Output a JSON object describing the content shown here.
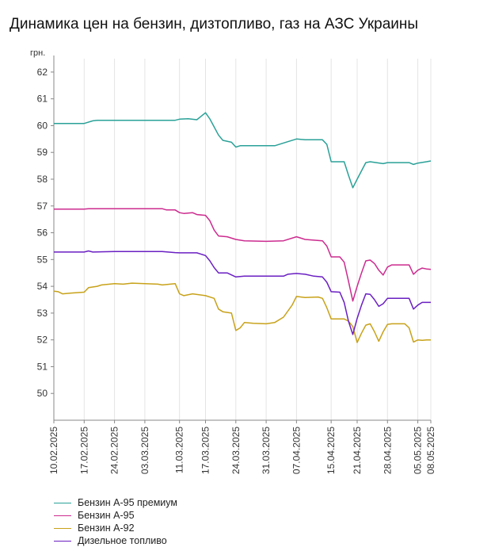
{
  "page": {
    "title": "Динамика цен на бензин, дизтопливо, газ на АЗС Украины"
  },
  "chart_data": {
    "type": "line",
    "title": "Динамика цен на бензин, дизтопливо, газ на АЗС Украины",
    "ylabel": "грн.",
    "xlabel": "",
    "ylim": [
      49,
      62.5
    ],
    "yticks": [
      50,
      51,
      52,
      53,
      54,
      55,
      56,
      57,
      58,
      59,
      60,
      61,
      62
    ],
    "x_start": "10.02.2025",
    "x_end": "08.05.2025",
    "xtick_labels": [
      "10.02.2025",
      "17.02.2025",
      "24.02.2025",
      "03.03.2025",
      "11.03.2025",
      "17.03.2025",
      "24.03.2025",
      "31.03.2025",
      "07.04.2025",
      "15.04.2025",
      "21.04.2025",
      "28.04.2025",
      "05.05.2025",
      "08.05.2025"
    ],
    "grid": "vertical",
    "legend_position": "bottom-left",
    "series": [
      {
        "name": "Бензин А-95 премиум",
        "color": "#2aa198",
        "points": [
          [
            "10.02.2025",
            60.08
          ],
          [
            "17.02.2025",
            60.08
          ],
          [
            "19.02.2025",
            60.18
          ],
          [
            "20.02.2025",
            60.2
          ],
          [
            "24.02.2025",
            60.2
          ],
          [
            "03.03.2025",
            60.2
          ],
          [
            "10.03.2025",
            60.2
          ],
          [
            "11.03.2025",
            60.24
          ],
          [
            "13.03.2025",
            60.26
          ],
          [
            "15.03.2025",
            60.22
          ],
          [
            "17.03.2025",
            60.48
          ],
          [
            "18.03.2025",
            60.25
          ],
          [
            "20.03.2025",
            59.65
          ],
          [
            "21.03.2025",
            59.45
          ],
          [
            "23.03.2025",
            59.38
          ],
          [
            "24.03.2025",
            59.2
          ],
          [
            "25.03.2025",
            59.25
          ],
          [
            "31.03.2025",
            59.25
          ],
          [
            "02.04.2025",
            59.25
          ],
          [
            "05.04.2025",
            59.4
          ],
          [
            "07.04.2025",
            59.5
          ],
          [
            "09.04.2025",
            59.47
          ],
          [
            "13.04.2025",
            59.47
          ],
          [
            "14.04.2025",
            59.3
          ],
          [
            "15.04.2025",
            58.65
          ],
          [
            "18.04.2025",
            58.65
          ],
          [
            "19.04.2025",
            58.15
          ],
          [
            "20.04.2025",
            57.68
          ],
          [
            "21.04.2025",
            58.0
          ],
          [
            "23.04.2025",
            58.62
          ],
          [
            "24.04.2025",
            58.65
          ],
          [
            "27.04.2025",
            58.58
          ],
          [
            "28.04.2025",
            58.62
          ],
          [
            "03.05.2025",
            58.62
          ],
          [
            "04.05.2025",
            58.55
          ],
          [
            "05.05.2025",
            58.6
          ],
          [
            "07.05.2025",
            58.65
          ],
          [
            "08.05.2025",
            58.68
          ]
        ]
      },
      {
        "name": "Бензин А-95",
        "color": "#cc2b8f",
        "points": [
          [
            "10.02.2025",
            56.88
          ],
          [
            "17.02.2025",
            56.88
          ],
          [
            "18.02.2025",
            56.9
          ],
          [
            "24.02.2025",
            56.9
          ],
          [
            "03.03.2025",
            56.9
          ],
          [
            "07.03.2025",
            56.9
          ],
          [
            "08.03.2025",
            56.85
          ],
          [
            "10.03.2025",
            56.85
          ],
          [
            "11.03.2025",
            56.75
          ],
          [
            "12.03.2025",
            56.72
          ],
          [
            "14.03.2025",
            56.75
          ],
          [
            "15.03.2025",
            56.68
          ],
          [
            "17.03.2025",
            56.65
          ],
          [
            "18.03.2025",
            56.45
          ],
          [
            "19.03.2025",
            56.1
          ],
          [
            "20.03.2025",
            55.88
          ],
          [
            "22.03.2025",
            55.85
          ],
          [
            "24.03.2025",
            55.75
          ],
          [
            "26.03.2025",
            55.7
          ],
          [
            "31.03.2025",
            55.68
          ],
          [
            "04.04.2025",
            55.7
          ],
          [
            "07.04.2025",
            55.85
          ],
          [
            "09.04.2025",
            55.75
          ],
          [
            "13.04.2025",
            55.7
          ],
          [
            "14.04.2025",
            55.5
          ],
          [
            "15.04.2025",
            55.1
          ],
          [
            "17.04.2025",
            55.1
          ],
          [
            "18.04.2025",
            54.9
          ],
          [
            "19.04.2025",
            54.2
          ],
          [
            "20.04.2025",
            53.45
          ],
          [
            "21.04.2025",
            54.0
          ],
          [
            "22.04.2025",
            54.5
          ],
          [
            "23.04.2025",
            54.95
          ],
          [
            "24.04.2025",
            54.98
          ],
          [
            "25.04.2025",
            54.85
          ],
          [
            "26.04.2025",
            54.6
          ],
          [
            "27.04.2025",
            54.42
          ],
          [
            "28.04.2025",
            54.72
          ],
          [
            "29.04.2025",
            54.8
          ],
          [
            "03.05.2025",
            54.8
          ],
          [
            "04.05.2025",
            54.45
          ],
          [
            "05.05.2025",
            54.6
          ],
          [
            "06.05.2025",
            54.68
          ],
          [
            "07.05.2025",
            54.65
          ],
          [
            "08.05.2025",
            54.63
          ]
        ]
      },
      {
        "name": "Бензин А-92",
        "color": "#c8a21a",
        "points": [
          [
            "10.02.2025",
            53.82
          ],
          [
            "11.02.2025",
            53.8
          ],
          [
            "12.02.2025",
            53.72
          ],
          [
            "14.02.2025",
            53.75
          ],
          [
            "17.02.2025",
            53.78
          ],
          [
            "18.02.2025",
            53.95
          ],
          [
            "20.02.2025",
            54.0
          ],
          [
            "21.02.2025",
            54.05
          ],
          [
            "24.02.2025",
            54.1
          ],
          [
            "26.02.2025",
            54.08
          ],
          [
            "28.02.2025",
            54.12
          ],
          [
            "03.03.2025",
            54.1
          ],
          [
            "06.03.2025",
            54.08
          ],
          [
            "07.03.2025",
            54.05
          ],
          [
            "10.03.2025",
            54.1
          ],
          [
            "11.03.2025",
            53.72
          ],
          [
            "12.03.2025",
            53.65
          ],
          [
            "14.03.2025",
            53.72
          ],
          [
            "17.03.2025",
            53.65
          ],
          [
            "19.03.2025",
            53.55
          ],
          [
            "20.03.2025",
            53.15
          ],
          [
            "21.03.2025",
            53.05
          ],
          [
            "23.03.2025",
            53.0
          ],
          [
            "24.03.2025",
            52.35
          ],
          [
            "25.03.2025",
            52.45
          ],
          [
            "26.03.2025",
            52.65
          ],
          [
            "28.03.2025",
            52.62
          ],
          [
            "31.03.2025",
            52.6
          ],
          [
            "02.04.2025",
            52.65
          ],
          [
            "04.04.2025",
            52.85
          ],
          [
            "06.04.2025",
            53.3
          ],
          [
            "07.04.2025",
            53.62
          ],
          [
            "09.04.2025",
            53.58
          ],
          [
            "12.04.2025",
            53.6
          ],
          [
            "13.04.2025",
            53.55
          ],
          [
            "14.04.2025",
            53.2
          ],
          [
            "15.04.2025",
            52.78
          ],
          [
            "18.04.2025",
            52.78
          ],
          [
            "19.04.2025",
            52.7
          ],
          [
            "20.04.2025",
            52.5
          ],
          [
            "21.04.2025",
            51.9
          ],
          [
            "22.04.2025",
            52.25
          ],
          [
            "23.04.2025",
            52.55
          ],
          [
            "24.04.2025",
            52.6
          ],
          [
            "25.04.2025",
            52.3
          ],
          [
            "26.04.2025",
            51.95
          ],
          [
            "27.04.2025",
            52.3
          ],
          [
            "28.04.2025",
            52.58
          ],
          [
            "29.04.2025",
            52.6
          ],
          [
            "02.05.2025",
            52.6
          ],
          [
            "03.05.2025",
            52.45
          ],
          [
            "04.05.2025",
            51.92
          ],
          [
            "05.05.2025",
            52.0
          ],
          [
            "06.05.2025",
            51.98
          ],
          [
            "07.05.2025",
            52.0
          ],
          [
            "08.05.2025",
            52.0
          ]
        ]
      },
      {
        "name": "Дизельное топливо",
        "color": "#6a1fc2",
        "points": [
          [
            "10.02.2025",
            55.28
          ],
          [
            "17.02.2025",
            55.28
          ],
          [
            "18.02.2025",
            55.32
          ],
          [
            "19.02.2025",
            55.28
          ],
          [
            "24.02.2025",
            55.3
          ],
          [
            "03.03.2025",
            55.3
          ],
          [
            "07.03.2025",
            55.3
          ],
          [
            "10.03.2025",
            55.26
          ],
          [
            "11.03.2025",
            55.25
          ],
          [
            "15.03.2025",
            55.25
          ],
          [
            "17.03.2025",
            55.15
          ],
          [
            "18.03.2025",
            54.95
          ],
          [
            "19.03.2025",
            54.7
          ],
          [
            "20.03.2025",
            54.5
          ],
          [
            "22.03.2025",
            54.5
          ],
          [
            "24.03.2025",
            54.35
          ],
          [
            "26.03.2025",
            54.38
          ],
          [
            "31.03.2025",
            54.38
          ],
          [
            "04.04.2025",
            54.38
          ],
          [
            "05.04.2025",
            54.45
          ],
          [
            "07.04.2025",
            54.48
          ],
          [
            "09.04.2025",
            54.45
          ],
          [
            "11.04.2025",
            54.38
          ],
          [
            "13.04.2025",
            54.35
          ],
          [
            "14.04.2025",
            54.15
          ],
          [
            "15.04.2025",
            53.8
          ],
          [
            "17.04.2025",
            53.78
          ],
          [
            "18.04.2025",
            53.4
          ],
          [
            "19.04.2025",
            52.7
          ],
          [
            "20.04.2025",
            52.2
          ],
          [
            "21.04.2025",
            52.8
          ],
          [
            "22.04.2025",
            53.3
          ],
          [
            "23.04.2025",
            53.72
          ],
          [
            "24.04.2025",
            53.7
          ],
          [
            "25.04.2025",
            53.5
          ],
          [
            "26.04.2025",
            53.25
          ],
          [
            "27.04.2025",
            53.35
          ],
          [
            "28.04.2025",
            53.55
          ],
          [
            "29.04.2025",
            53.55
          ],
          [
            "03.05.2025",
            53.55
          ],
          [
            "04.05.2025",
            53.15
          ],
          [
            "05.05.2025",
            53.3
          ],
          [
            "06.05.2025",
            53.4
          ],
          [
            "07.05.2025",
            53.4
          ],
          [
            "08.05.2025",
            53.4
          ]
        ]
      }
    ]
  }
}
